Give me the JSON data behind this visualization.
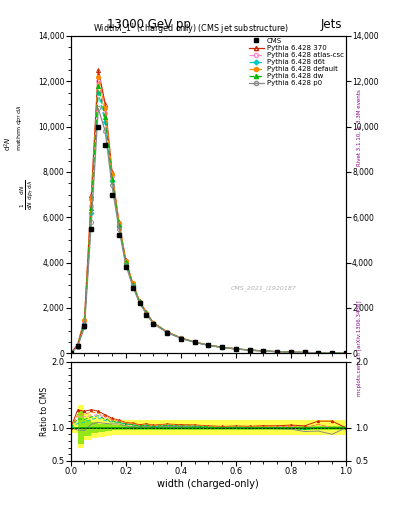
{
  "title_top": "13000 GeV pp",
  "title_top_right": "Jets",
  "plot_title": "Width$\\lambda$\\_1$^1$ (charged only) (CMS jet substructure)",
  "xlabel": "width (charged-only)",
  "ylabel_ratio": "Ratio to CMS",
  "right_label_top": "Rivet 3.1.10, ≥ 3.3M events",
  "right_label_bottom": "mcplots.cern.ch [arXiv:1306.3436]",
  "watermark": "CMS_2021_I1920187",
  "ylim_main": [
    0,
    14000
  ],
  "ylim_ratio": [
    0.5,
    2.0
  ],
  "x_data": [
    0.0,
    0.025,
    0.05,
    0.075,
    0.1,
    0.125,
    0.15,
    0.175,
    0.2,
    0.225,
    0.25,
    0.275,
    0.3,
    0.35,
    0.4,
    0.45,
    0.5,
    0.55,
    0.6,
    0.65,
    0.7,
    0.75,
    0.8,
    0.85,
    0.9,
    0.95,
    1.0
  ],
  "cms_data": [
    0,
    300,
    1200,
    5500,
    10000,
    9200,
    7000,
    5200,
    3800,
    2900,
    2200,
    1700,
    1300,
    900,
    650,
    480,
    350,
    260,
    190,
    140,
    100,
    70,
    50,
    35,
    20,
    10,
    5
  ],
  "py370_data": [
    0,
    380,
    1500,
    7000,
    12500,
    11000,
    8000,
    5800,
    4100,
    3100,
    2300,
    1800,
    1350,
    950,
    680,
    500,
    360,
    265,
    195,
    143,
    103,
    72,
    52,
    36,
    22,
    11,
    5
  ],
  "py_atlas_data": [
    0,
    350,
    1400,
    6500,
    12000,
    10600,
    7800,
    5700,
    4050,
    3060,
    2270,
    1780,
    1330,
    940,
    670,
    494,
    356,
    262,
    193,
    141,
    101,
    71,
    51,
    35,
    21,
    10,
    5
  ],
  "py_d6t_data": [
    0,
    320,
    1300,
    6200,
    11500,
    10200,
    7600,
    5600,
    4000,
    3020,
    2250,
    1760,
    1320,
    930,
    665,
    490,
    353,
    259,
    191,
    140,
    100,
    70,
    50,
    34,
    20,
    10,
    5
  ],
  "py_default_data": [
    0,
    360,
    1450,
    6800,
    12200,
    10800,
    7900,
    5750,
    4080,
    3080,
    2280,
    1790,
    1340,
    945,
    675,
    497,
    358,
    263,
    194,
    142,
    102,
    71,
    51,
    35,
    21,
    10,
    5
  ],
  "py_dw_data": [
    0,
    340,
    1350,
    6400,
    11800,
    10400,
    7700,
    5650,
    4020,
    3040,
    2260,
    1770,
    1325,
    935,
    668,
    492,
    354,
    260,
    192,
    140,
    100,
    70,
    50,
    34,
    20,
    10,
    5
  ],
  "py_p0_data": [
    0,
    290,
    1150,
    5800,
    10800,
    9800,
    7400,
    5500,
    3900,
    2960,
    2210,
    1740,
    1305,
    920,
    658,
    485,
    350,
    257,
    190,
    138,
    99,
    69,
    49,
    33,
    19,
    9,
    5
  ],
  "cms_err_lo": [
    1,
    0.75,
    0.88,
    0.92,
    0.94,
    0.95,
    0.96,
    0.96,
    0.97,
    0.97,
    0.97,
    0.97,
    0.97,
    0.97,
    0.97,
    0.97,
    0.97,
    0.97,
    0.97,
    0.97,
    0.97,
    0.97,
    0.97,
    0.97,
    0.97,
    0.97,
    0.97
  ],
  "cms_err_hi": [
    1,
    1.25,
    1.12,
    1.08,
    1.06,
    1.05,
    1.04,
    1.04,
    1.03,
    1.03,
    1.03,
    1.03,
    1.03,
    1.03,
    1.03,
    1.03,
    1.03,
    1.03,
    1.03,
    1.03,
    1.03,
    1.03,
    1.03,
    1.03,
    1.03,
    1.03,
    1.03
  ],
  "colors": {
    "cms": "#000000",
    "py370": "#cc2200",
    "py_atlas": "#ff88cc",
    "py_d6t": "#00cccc",
    "py_default": "#ff8800",
    "py_dw": "#00bb00",
    "py_p0": "#888888"
  },
  "legend_labels": [
    "CMS",
    "Pythia 6.428 370",
    "Pythia 6.428 atlas-csc",
    "Pythia 6.428 d6t",
    "Pythia 6.428 default",
    "Pythia 6.428 dw",
    "Pythia 6.428 p0"
  ]
}
